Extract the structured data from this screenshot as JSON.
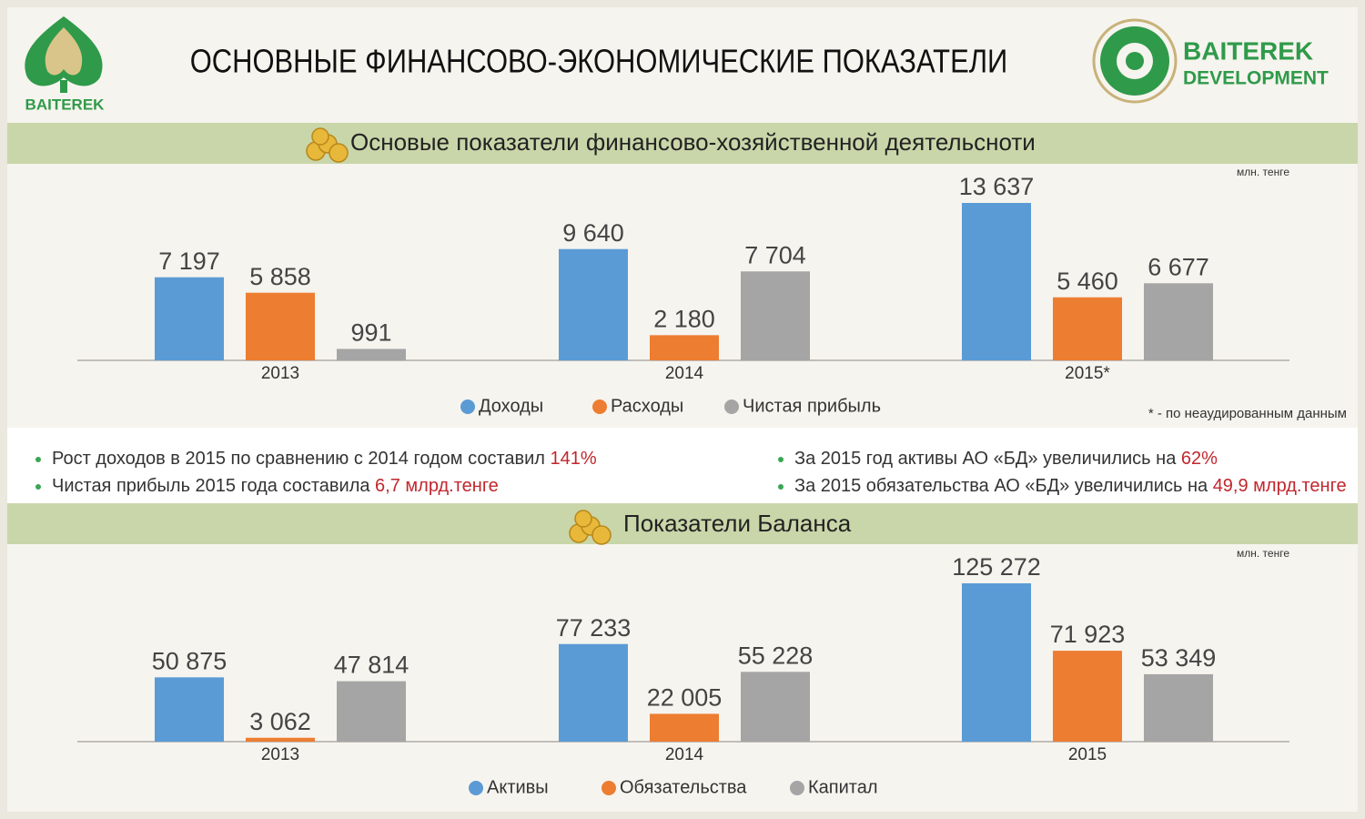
{
  "header": {
    "title": "ОСНОВНЫЕ ФИНАНСОВО-ЭКОНОМИЧЕСКИЕ ПОКАЗАТЕЛИ",
    "logo_left": "BAITEREK",
    "logo_right_1": "BAITEREK",
    "logo_right_2": "DEVELOPMENT"
  },
  "chart_data": [
    {
      "type": "bar",
      "title": "Основые показатели финансово-хозяйственной деятельсноти",
      "unit": "млн. тенге",
      "categories": [
        "2013",
        "2014",
        "2015*"
      ],
      "series": [
        {
          "name": "Доходы",
          "color": "#5b9bd5",
          "values": [
            7197,
            9640,
            13637
          ],
          "value_labels": [
            "7 197",
            "9 640",
            "13 637"
          ]
        },
        {
          "name": "Расходы",
          "color": "#ed7d31",
          "values": [
            5858,
            2180,
            5460
          ],
          "value_labels": [
            "5 858",
            "2 180",
            "5 460"
          ]
        },
        {
          "name": "Чистая прибыль",
          "color": "#a5a5a5",
          "values": [
            991,
            7704,
            6677
          ],
          "value_labels": [
            "991",
            "7 704",
            "6 677"
          ]
        }
      ],
      "note": "* - по неаудированным данным"
    },
    {
      "type": "bar",
      "title": "Показатели Баланса",
      "unit": "млн. тенге",
      "categories": [
        "2013",
        "2014",
        "2015"
      ],
      "series": [
        {
          "name": "Активы",
          "color": "#5b9bd5",
          "values": [
            50875,
            77233,
            125272
          ],
          "value_labels": [
            "50 875",
            "77 233",
            "125 272"
          ]
        },
        {
          "name": "Обязательства",
          "color": "#ed7d31",
          "values": [
            3062,
            22005,
            71923
          ],
          "value_labels": [
            "3 062",
            "22 005",
            "71 923"
          ]
        },
        {
          "name": "Капитал",
          "color": "#a5a5a5",
          "values": [
            47814,
            55228,
            53349
          ],
          "value_labels": [
            "47 814",
            "55 228",
            "53 349"
          ]
        }
      ]
    }
  ],
  "highlights": [
    {
      "text": "Рост доходов в 2015 по сравнению с 2014 годом составил ",
      "emphasis": "141%"
    },
    {
      "text": "Чистая прибыль 2015 года составила ",
      "emphasis": "6,7 млрд.тенге"
    },
    {
      "text": "За 2015 год активы АО «БД» увеличились на ",
      "emphasis": "62%"
    },
    {
      "text": "За 2015 обязательства АО «БД» увеличились на ",
      "emphasis": "49,9 млрд.тенге"
    }
  ]
}
